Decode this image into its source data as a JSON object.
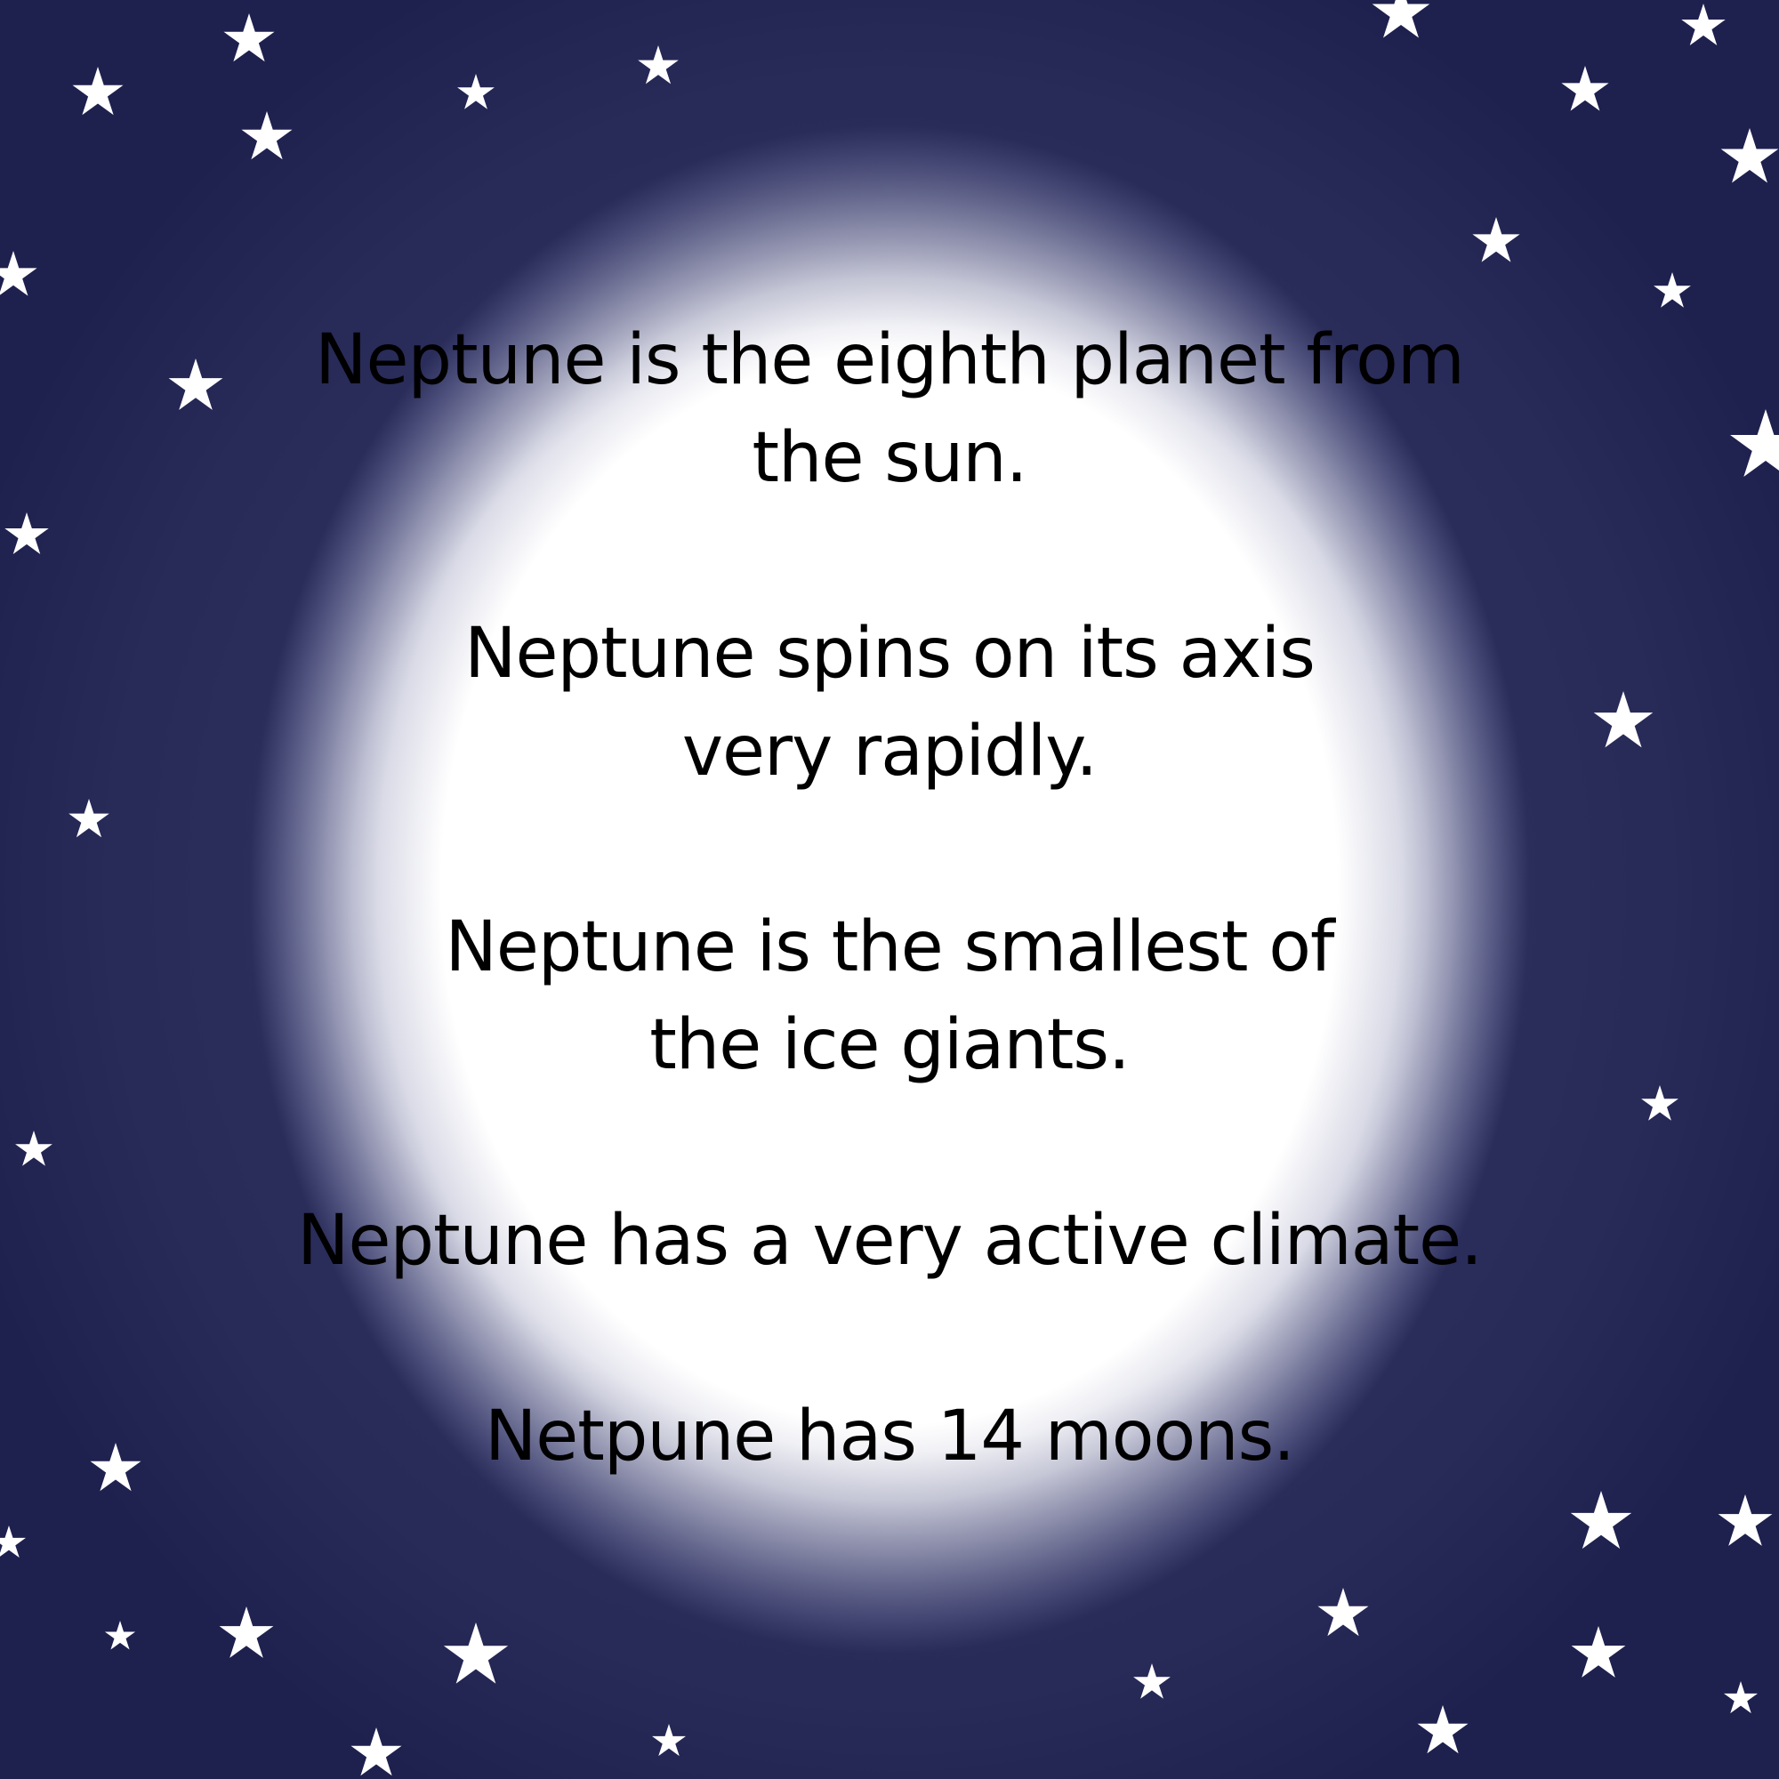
{
  "facts": [
    {
      "lines": [
        "Neptune is the eighth planet from",
        "the sun."
      ]
    },
    {
      "lines": [
        "Neptune spins on its axis",
        "very rapidly."
      ]
    },
    {
      "lines": [
        "Neptune is the smallest of",
        "the ice giants."
      ]
    },
    {
      "lines": [
        "Neptune has a very active climate."
      ]
    },
    {
      "lines": [
        "Netpune has 14 moons."
      ]
    }
  ],
  "colors": {
    "background_dark": "#242654",
    "glow": "#ffffff",
    "text": "#000000",
    "stars": "#ffffff"
  },
  "icons": [
    "star-icon"
  ]
}
